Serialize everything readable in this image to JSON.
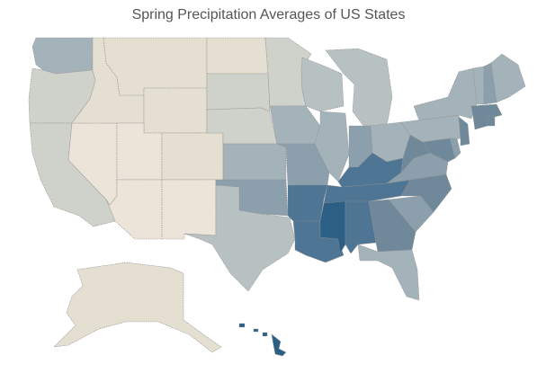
{
  "title": "Spring Precipitation Averages of US States",
  "colors": {
    "dry": "#ece4d8",
    "dry2": "#e4dfd1",
    "mid_light": "#cfd2cb",
    "mid": "#b8c1c2",
    "blue_light": "#a4b3ba",
    "blue_mid": "#8c9fac",
    "blue": "#6f899b",
    "blue_dark": "#4e7593",
    "wet": "#2c5f85"
  },
  "regions": [
    {
      "name": "Washington",
      "level": "blue_light"
    },
    {
      "name": "Oregon",
      "level": "mid_light"
    },
    {
      "name": "California",
      "level": "mid_light"
    },
    {
      "name": "Nevada",
      "level": "dry"
    },
    {
      "name": "Idaho",
      "level": "dry2"
    },
    {
      "name": "Montana",
      "level": "dry2"
    },
    {
      "name": "Wyoming",
      "level": "dry2"
    },
    {
      "name": "Utah",
      "level": "dry"
    },
    {
      "name": "Arizona",
      "level": "dry"
    },
    {
      "name": "Colorado",
      "level": "dry2"
    },
    {
      "name": "New Mexico",
      "level": "dry"
    },
    {
      "name": "North Dakota",
      "level": "dry2"
    },
    {
      "name": "South Dakota",
      "level": "mid_light"
    },
    {
      "name": "Nebraska",
      "level": "mid_light"
    },
    {
      "name": "Kansas",
      "level": "blue_light"
    },
    {
      "name": "Oklahoma",
      "level": "blue_mid"
    },
    {
      "name": "Texas",
      "level": "mid"
    },
    {
      "name": "Minnesota",
      "level": "mid_light"
    },
    {
      "name": "Iowa",
      "level": "blue_light"
    },
    {
      "name": "Missouri",
      "level": "blue_mid"
    },
    {
      "name": "Arkansas",
      "level": "blue_dark"
    },
    {
      "name": "Louisiana",
      "level": "blue_dark"
    },
    {
      "name": "Wisconsin",
      "level": "mid"
    },
    {
      "name": "Illinois",
      "level": "blue_light"
    },
    {
      "name": "Michigan",
      "level": "mid"
    },
    {
      "name": "Indiana",
      "level": "blue_mid"
    },
    {
      "name": "Ohio",
      "level": "blue_light"
    },
    {
      "name": "Kentucky",
      "level": "blue_dark"
    },
    {
      "name": "Tennessee",
      "level": "blue_dark"
    },
    {
      "name": "Mississippi",
      "level": "wet"
    },
    {
      "name": "Alabama",
      "level": "blue_dark"
    },
    {
      "name": "Georgia",
      "level": "blue"
    },
    {
      "name": "Florida",
      "level": "blue_light"
    },
    {
      "name": "South Carolina",
      "level": "blue_mid"
    },
    {
      "name": "North Carolina",
      "level": "blue"
    },
    {
      "name": "Virginia",
      "level": "blue_mid"
    },
    {
      "name": "West Virginia",
      "level": "blue"
    },
    {
      "name": "Pennsylvania",
      "level": "blue_light"
    },
    {
      "name": "New York",
      "level": "blue_light"
    },
    {
      "name": "Maryland",
      "level": "blue"
    },
    {
      "name": "Delaware",
      "level": "blue_mid"
    },
    {
      "name": "New Jersey",
      "level": "blue"
    },
    {
      "name": "Connecticut",
      "level": "blue"
    },
    {
      "name": "Rhode Island",
      "level": "blue"
    },
    {
      "name": "Massachusetts",
      "level": "blue"
    },
    {
      "name": "Vermont",
      "level": "blue_light"
    },
    {
      "name": "New Hampshire",
      "level": "blue_mid"
    },
    {
      "name": "Maine",
      "level": "blue_light"
    },
    {
      "name": "Alaska",
      "level": "dry2"
    },
    {
      "name": "Hawaii",
      "level": "wet"
    }
  ]
}
